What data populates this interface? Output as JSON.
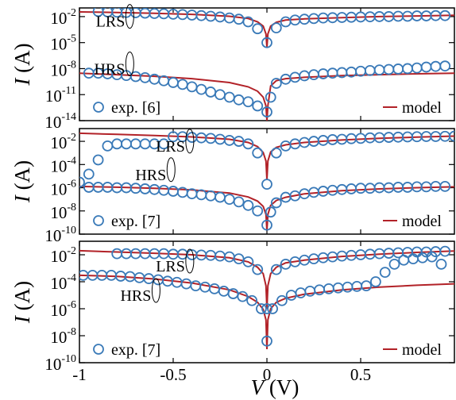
{
  "colors": {
    "experiment": "#3a7ab8",
    "model": "#b22228",
    "axis": "#000000"
  },
  "xlabel": {
    "italic": "V",
    "unit": " (V)"
  },
  "ylabel": {
    "italic": "I",
    "unit": " (A)"
  },
  "chart_data": [
    {
      "type": "scatter",
      "panel": "top",
      "xlim": [
        -1,
        1
      ],
      "ylim_log10": [
        -14,
        -1
      ],
      "y_scale": "log",
      "y_ticks": [
        {
          "base": "10",
          "exp": "-2",
          "value": 0.01
        },
        {
          "base": "10",
          "exp": "-5",
          "value": 1e-05
        },
        {
          "base": "10",
          "exp": "-8",
          "value": 1e-08
        },
        {
          "base": "10",
          "exp": "-11",
          "value": 1e-11
        },
        {
          "base": "10",
          "exp": "-14",
          "value": 1e-14
        }
      ],
      "annotations": [
        {
          "text": "LRS",
          "x": -0.74,
          "y": 0.003
        },
        {
          "text": "HRS",
          "x": -0.74,
          "y": 1e-08
        }
      ],
      "legend": {
        "marker_label": "exp. [6]",
        "line_label": "model"
      },
      "series": [
        {
          "kind": "exp",
          "state": "LRS",
          "x": [
            -0.9,
            -0.85,
            -0.8,
            -0.75,
            -0.7,
            -0.65,
            -0.6,
            -0.55,
            -0.5,
            -0.45,
            -0.4,
            -0.35,
            -0.3,
            -0.25,
            -0.2,
            -0.15,
            -0.1,
            -0.05,
            0.0,
            0.05,
            0.1,
            0.15,
            0.2,
            0.25,
            0.3,
            0.35,
            0.4,
            0.45,
            0.5,
            0.55,
            0.6,
            0.65,
            0.7,
            0.75,
            0.8,
            0.85,
            0.9,
            0.95
          ],
          "y": [
            0.04,
            0.035,
            0.033,
            0.03,
            0.028,
            0.025,
            0.023,
            0.021,
            0.019,
            0.017,
            0.015,
            0.013,
            0.011,
            0.009,
            0.007,
            0.005,
            0.0025,
            0.0004,
            1e-05,
            0.0005,
            0.0025,
            0.004,
            0.005,
            0.006,
            0.007,
            0.0075,
            0.008,
            0.0085,
            0.009,
            0.0095,
            0.01,
            0.01,
            0.011,
            0.011,
            0.012,
            0.012,
            0.013,
            0.013
          ]
        },
        {
          "kind": "exp",
          "state": "HRS",
          "x": [
            -0.95,
            -0.9,
            -0.85,
            -0.8,
            -0.75,
            -0.7,
            -0.65,
            -0.6,
            -0.55,
            -0.5,
            -0.45,
            -0.4,
            -0.35,
            -0.3,
            -0.25,
            -0.2,
            -0.15,
            -0.1,
            -0.05,
            0.0,
            0.02,
            0.05,
            0.1,
            0.15,
            0.2,
            0.25,
            0.3,
            0.35,
            0.4,
            0.45,
            0.5,
            0.55,
            0.6,
            0.65,
            0.7,
            0.75,
            0.8,
            0.85,
            0.9,
            0.95
          ],
          "y": [
            3e-09,
            3e-09,
            2.5e-09,
            2e-09,
            1.6e-09,
            1.2e-09,
            9e-10,
            6e-10,
            4e-10,
            2.5e-10,
            1.5e-10,
            8e-11,
            4e-11,
            2e-11,
            1e-11,
            5e-12,
            2.5e-12,
            1.5e-12,
            5e-13,
            1e-13,
            5e-12,
            2e-10,
            6e-10,
            1e-09,
            1.5e-09,
            2e-09,
            2.5e-09,
            3e-09,
            3.5e-09,
            4e-09,
            5e-09,
            6e-09,
            7e-09,
            8e-09,
            9e-09,
            1e-08,
            1.2e-08,
            1.5e-08,
            1.8e-08,
            2e-08
          ]
        },
        {
          "kind": "model",
          "state": "LRS",
          "x": [
            -1,
            -0.8,
            -0.6,
            -0.4,
            -0.2,
            -0.1,
            -0.05,
            -0.02,
            -0.005,
            0.0,
            0.005,
            0.02,
            0.05,
            0.1,
            0.2,
            0.4,
            0.6,
            0.8,
            1.0
          ],
          "y": [
            0.035,
            0.03,
            0.024,
            0.018,
            0.011,
            0.006,
            0.0025,
            0.0008,
            0.0001,
            3e-06,
            0.0001,
            0.0008,
            0.0022,
            0.004,
            0.0055,
            0.0075,
            0.01,
            0.012,
            0.014
          ]
        },
        {
          "kind": "model",
          "state": "HRS",
          "x": [
            -1,
            -0.8,
            -0.6,
            -0.4,
            -0.2,
            -0.1,
            -0.05,
            -0.02,
            -0.005,
            0.0,
            0.005,
            0.02,
            0.05,
            0.1,
            0.2,
            0.4,
            0.6,
            0.8,
            1.0
          ],
          "y": [
            3e-09,
            2e-09,
            1.3e-09,
            7e-10,
            2.5e-10,
            8e-11,
            2.5e-11,
            5e-12,
            5e-13,
            1e-14,
            5e-13,
            1e-10,
            4e-10,
            7e-10,
            1e-09,
            1.6e-09,
            2e-09,
            2.5e-09,
            3e-09
          ]
        }
      ]
    },
    {
      "type": "scatter",
      "panel": "middle",
      "xlim": [
        -1,
        1
      ],
      "ylim_log10": [
        -10,
        -0.9
      ],
      "y_scale": "log",
      "y_ticks": [
        {
          "base": "10",
          "exp": "-2",
          "value": 0.01
        },
        {
          "base": "10",
          "exp": "-4",
          "value": 0.0001
        },
        {
          "base": "10",
          "exp": "-6",
          "value": 1e-06
        },
        {
          "base": "10",
          "exp": "-8",
          "value": 1e-08
        },
        {
          "base": "10",
          "exp": "-10",
          "value": 1e-10
        }
      ],
      "annotations": [
        {
          "text": "LRS",
          "x": -0.42,
          "y": 0.004
        },
        {
          "text": "HRS",
          "x": -0.52,
          "y": 1.4e-05
        }
      ],
      "legend": {
        "marker_label": "exp. [7]",
        "line_label": "model"
      },
      "series": [
        {
          "kind": "exp",
          "state": "LRS",
          "x": [
            -1.0,
            -0.95,
            -0.9,
            -0.85,
            -0.8,
            -0.75,
            -0.7,
            -0.65,
            -0.6,
            -0.55,
            -0.5,
            -0.45,
            -0.4,
            -0.35,
            -0.3,
            -0.25,
            -0.2,
            -0.15,
            -0.1,
            -0.05,
            0.0,
            0.05,
            0.1,
            0.15,
            0.2,
            0.25,
            0.3,
            0.35,
            0.4,
            0.45,
            0.5,
            0.55,
            0.6,
            0.65,
            0.7,
            0.75,
            0.8,
            0.85,
            0.9,
            0.95,
            1.0
          ],
          "y": [
            3e-06,
            1.5e-05,
            0.00025,
            0.004,
            0.006,
            0.006,
            0.006,
            0.006,
            0.006,
            0.006,
            0.025,
            0.025,
            0.022,
            0.02,
            0.018,
            0.015,
            0.012,
            0.01,
            0.006,
            0.001,
            2e-06,
            0.001,
            0.004,
            0.006,
            0.008,
            0.01,
            0.012,
            0.014,
            0.015,
            0.017,
            0.018,
            0.02,
            0.021,
            0.022,
            0.023,
            0.024,
            0.025,
            0.026,
            0.026,
            0.027,
            0.028
          ]
        },
        {
          "kind": "exp",
          "state": "HRS",
          "x": [
            -0.95,
            -0.9,
            -0.85,
            -0.8,
            -0.75,
            -0.7,
            -0.65,
            -0.6,
            -0.55,
            -0.5,
            -0.45,
            -0.4,
            -0.35,
            -0.3,
            -0.25,
            -0.2,
            -0.15,
            -0.1,
            -0.05,
            0.0,
            0.02,
            0.05,
            0.1,
            0.15,
            0.2,
            0.25,
            0.3,
            0.35,
            0.4,
            0.45,
            0.5,
            0.55,
            0.6,
            0.65,
            0.7,
            0.75,
            0.8,
            0.85,
            0.9,
            0.95
          ],
          "y": [
            1.1e-06,
            1.1e-06,
            1.1e-06,
            1e-06,
            1e-06,
            9e-07,
            8e-07,
            7e-07,
            6e-07,
            5e-07,
            4e-07,
            3e-07,
            2.5e-07,
            2e-07,
            1.5e-07,
            1e-07,
            6e-08,
            3e-08,
            1e-08,
            6e-10,
            8e-09,
            5e-08,
            1.5e-07,
            2e-07,
            3e-07,
            4e-07,
            5e-07,
            6e-07,
            7e-07,
            8e-07,
            9e-07,
            9e-07,
            1e-06,
            1e-06,
            1.1e-06,
            1.1e-06,
            1.2e-06,
            1.2e-06,
            1.3e-06,
            1.3e-06
          ]
        },
        {
          "kind": "model",
          "state": "LRS",
          "x": [
            -1,
            -0.8,
            -0.6,
            -0.4,
            -0.2,
            -0.1,
            -0.05,
            -0.02,
            -0.005,
            0.0,
            0.005,
            0.02,
            0.05,
            0.1,
            0.2,
            0.4,
            0.6,
            0.8,
            1.0
          ],
          "y": [
            0.05,
            0.04,
            0.032,
            0.024,
            0.015,
            0.008,
            0.0035,
            0.0011,
            0.0002,
            5e-06,
            0.0002,
            0.0012,
            0.003,
            0.005,
            0.008,
            0.013,
            0.018,
            0.023,
            0.028
          ]
        },
        {
          "kind": "model",
          "state": "HRS",
          "x": [
            -1,
            -0.8,
            -0.6,
            -0.4,
            -0.2,
            -0.1,
            -0.05,
            -0.02,
            -0.005,
            0.0,
            0.005,
            0.02,
            0.05,
            0.1,
            0.2,
            0.4,
            0.6,
            0.8,
            1.0
          ],
          "y": [
            1.3e-06,
            1.1e-06,
            9e-07,
            6.5e-07,
            3.5e-07,
            1.6e-07,
            7e-08,
            2.5e-08,
            5e-09,
            2e-10,
            5e-09,
            3e-08,
            8e-08,
            1.5e-07,
            3e-07,
            5.5e-07,
            8e-07,
            1e-06,
            1.2e-06
          ]
        }
      ]
    },
    {
      "type": "scatter",
      "panel": "bottom",
      "xlim": [
        -1,
        1
      ],
      "ylim_log10": [
        -10,
        -1
      ],
      "y_scale": "log",
      "y_ticks": [
        {
          "base": "10",
          "exp": "-2",
          "value": 0.01
        },
        {
          "base": "10",
          "exp": "-4",
          "value": 0.0001
        },
        {
          "base": "10",
          "exp": "-6",
          "value": 1e-06
        },
        {
          "base": "10",
          "exp": "-8",
          "value": 1e-08
        },
        {
          "base": "10",
          "exp": "-10",
          "value": 1e-10
        }
      ],
      "annotations": [
        {
          "text": "LRS",
          "x": -0.42,
          "y": 0.0015
        },
        {
          "text": "HRS",
          "x": -0.6,
          "y": 1e-05
        }
      ],
      "legend": {
        "marker_label": "exp. [7]",
        "line_label": "model"
      },
      "series": [
        {
          "kind": "exp",
          "state": "LRS",
          "x": [
            -0.8,
            -0.75,
            -0.7,
            -0.65,
            -0.6,
            -0.55,
            -0.5,
            -0.45,
            -0.4,
            -0.35,
            -0.3,
            -0.25,
            -0.2,
            -0.15,
            -0.1,
            -0.05,
            0.0,
            0.05,
            0.1,
            0.15,
            0.2,
            0.25,
            0.3,
            0.35,
            0.4,
            0.45,
            0.5,
            0.55,
            0.6,
            0.65,
            0.7,
            0.75,
            0.8,
            0.85,
            0.9,
            0.95
          ],
          "y": [
            0.012,
            0.012,
            0.012,
            0.012,
            0.012,
            0.012,
            0.011,
            0.011,
            0.01,
            0.0095,
            0.009,
            0.008,
            0.007,
            0.005,
            0.003,
            0.0008,
            1e-06,
            0.0008,
            0.002,
            0.003,
            0.004,
            0.005,
            0.006,
            0.007,
            0.008,
            0.009,
            0.01,
            0.011,
            0.012,
            0.013,
            0.014,
            0.015,
            0.016,
            0.016,
            0.017,
            0.018
          ]
        },
        {
          "kind": "exp",
          "state": "HRS",
          "x": [
            -0.98,
            -0.93,
            -0.88,
            -0.83,
            -0.78,
            -0.73,
            -0.68,
            -0.63,
            -0.58,
            -0.53,
            -0.48,
            -0.43,
            -0.38,
            -0.33,
            -0.28,
            -0.23,
            -0.18,
            -0.13,
            -0.08,
            -0.03,
            0.0,
            0.03,
            0.08,
            0.13,
            0.18,
            0.23,
            0.28,
            0.33,
            0.38,
            0.43,
            0.48,
            0.53,
            0.58,
            0.63,
            0.68,
            0.73,
            0.78,
            0.83,
            0.88,
            0.93
          ],
          "y": [
            0.0003,
            0.0003,
            0.0003,
            0.0003,
            0.00026,
            0.00024,
            0.0002,
            0.00017,
            0.00014,
            0.00011,
            9e-05,
            7e-05,
            5e-05,
            4e-05,
            3e-05,
            2e-05,
            1.3e-05,
            8e-06,
            4e-06,
            1e-06,
            4e-09,
            1e-06,
            4e-06,
            1e-05,
            1.5e-05,
            2e-05,
            2.5e-05,
            3e-05,
            3.5e-05,
            4e-05,
            4.5e-05,
            5e-05,
            0.0001,
            0.0005,
            0.002,
            0.004,
            0.005,
            0.006,
            0.007,
            0.002
          ]
        },
        {
          "kind": "model",
          "state": "LRS",
          "x": [
            -1,
            -0.8,
            -0.6,
            -0.4,
            -0.2,
            -0.1,
            -0.05,
            -0.02,
            -0.005,
            0.0,
            0.005,
            0.02,
            0.05,
            0.1,
            0.2,
            0.4,
            0.6,
            0.8,
            1.0
          ],
          "y": [
            0.02,
            0.016,
            0.013,
            0.01,
            0.006,
            0.003,
            0.0012,
            0.0004,
            5e-05,
            1e-06,
            5e-05,
            0.0004,
            0.0012,
            0.0025,
            0.004,
            0.0075,
            0.011,
            0.015,
            0.019
          ]
        },
        {
          "kind": "model",
          "state": "HRS",
          "x": [
            -1,
            -0.8,
            -0.6,
            -0.4,
            -0.2,
            -0.1,
            -0.05,
            -0.02,
            -0.005,
            0.0,
            0.005,
            0.02,
            0.05,
            0.1,
            0.2,
            0.4,
            0.6,
            0.8,
            1.0
          ],
          "y": [
            0.0003,
            0.00025,
            0.00016,
            8e-05,
            2.5e-05,
            8e-06,
            3e-06,
            9e-07,
            1.5e-07,
            1e-09,
            1.5e-07,
            1e-06,
            3e-06,
            6e-06,
            1.2e-05,
            2.5e-05,
            4e-05,
            5.5e-05,
            7e-05
          ]
        }
      ]
    }
  ],
  "x_ticks": [
    {
      "label": "-1",
      "value": -1
    },
    {
      "label": "-0.5",
      "value": -0.5
    },
    {
      "label": "0",
      "value": 0
    },
    {
      "label": "0.5",
      "value": 0.5
    }
  ]
}
